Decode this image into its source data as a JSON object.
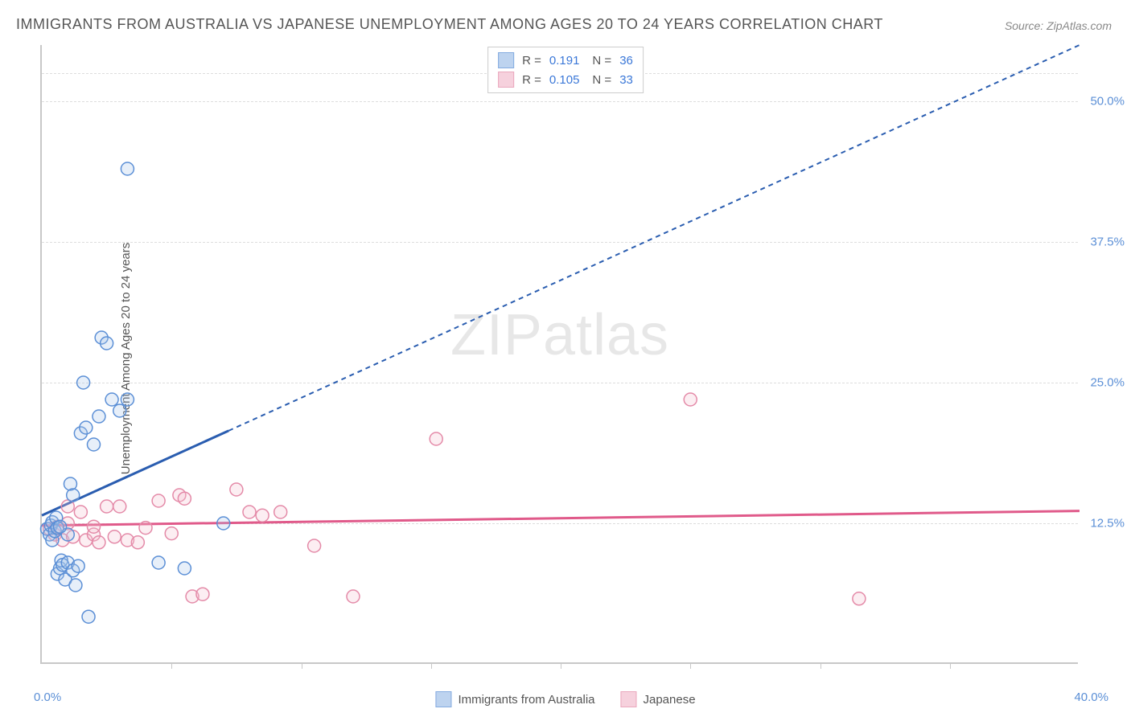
{
  "title": "IMMIGRANTS FROM AUSTRALIA VS JAPANESE UNEMPLOYMENT AMONG AGES 20 TO 24 YEARS CORRELATION CHART",
  "source": "Source: ZipAtlas.com",
  "ylabel": "Unemployment Among Ages 20 to 24 years",
  "watermark_a": "ZIP",
  "watermark_b": "atlas",
  "chart": {
    "type": "scatter",
    "xlim": [
      0,
      40
    ],
    "ylim": [
      0,
      55
    ],
    "x_tick_step": 5,
    "y_ticks": [
      12.5,
      25.0,
      37.5,
      50.0
    ],
    "y_tick_labels": [
      "12.5%",
      "25.0%",
      "37.5%",
      "50.0%"
    ],
    "x_min_label": "0.0%",
    "x_max_label": "40.0%",
    "grid_color": "#dddddd",
    "axis_color": "#c8c8c8",
    "background": "#ffffff",
    "marker_radius": 8,
    "marker_stroke_width": 1.5,
    "marker_fill_opacity": 0.28,
    "line_width_solid": 3,
    "line_width_dash": 2,
    "dash_pattern": "6,5",
    "series": [
      {
        "name": "Immigrants from Australia",
        "color_stroke": "#5b8fd6",
        "color_fill": "#a8c5ea",
        "trend_color": "#2a5db0",
        "R": "0.191",
        "N": "36",
        "trend": {
          "x1": 0,
          "y1": 13.2,
          "x2": 40,
          "y2": 55,
          "solid_until_x": 7.2
        },
        "points": [
          [
            0.2,
            12.0
          ],
          [
            0.3,
            11.5
          ],
          [
            0.35,
            12.3
          ],
          [
            0.4,
            11.0
          ],
          [
            0.4,
            12.6
          ],
          [
            0.5,
            11.8
          ],
          [
            0.55,
            13.0
          ],
          [
            0.6,
            12.1
          ],
          [
            0.6,
            8.0
          ],
          [
            0.7,
            8.5
          ],
          [
            0.75,
            9.2
          ],
          [
            0.8,
            8.8
          ],
          [
            0.9,
            7.5
          ],
          [
            1.0,
            9.0
          ],
          [
            1.0,
            11.5
          ],
          [
            1.1,
            16.0
          ],
          [
            1.2,
            15.0
          ],
          [
            1.2,
            8.3
          ],
          [
            1.3,
            7.0
          ],
          [
            1.4,
            8.7
          ],
          [
            1.5,
            20.5
          ],
          [
            1.6,
            25.0
          ],
          [
            1.7,
            21.0
          ],
          [
            1.8,
            4.2
          ],
          [
            2.0,
            19.5
          ],
          [
            2.2,
            22.0
          ],
          [
            2.3,
            29.0
          ],
          [
            2.5,
            28.5
          ],
          [
            2.7,
            23.5
          ],
          [
            3.0,
            22.5
          ],
          [
            3.3,
            44.0
          ],
          [
            3.3,
            23.5
          ],
          [
            4.5,
            9.0
          ],
          [
            5.5,
            8.5
          ],
          [
            7.0,
            12.5
          ],
          [
            0.7,
            12.2
          ]
        ]
      },
      {
        "name": "Japanese",
        "color_stroke": "#e48aa8",
        "color_fill": "#f4c2d2",
        "trend_color": "#e05a8a",
        "R": "0.105",
        "N": "33",
        "trend": {
          "x1": 0,
          "y1": 12.3,
          "x2": 40,
          "y2": 13.6,
          "solid_until_x": 40
        },
        "points": [
          [
            0.3,
            12.0
          ],
          [
            0.5,
            11.5
          ],
          [
            0.6,
            12.2
          ],
          [
            0.8,
            11.0
          ],
          [
            1.0,
            14.0
          ],
          [
            1.0,
            12.5
          ],
          [
            1.2,
            11.3
          ],
          [
            1.5,
            13.5
          ],
          [
            1.7,
            11.0
          ],
          [
            2.0,
            11.5
          ],
          [
            2.0,
            12.2
          ],
          [
            2.2,
            10.8
          ],
          [
            2.5,
            14.0
          ],
          [
            2.8,
            11.3
          ],
          [
            3.0,
            14.0
          ],
          [
            3.3,
            11.0
          ],
          [
            3.7,
            10.8
          ],
          [
            4.0,
            12.1
          ],
          [
            4.5,
            14.5
          ],
          [
            5.0,
            11.6
          ],
          [
            5.3,
            15.0
          ],
          [
            5.5,
            14.7
          ],
          [
            5.8,
            6.0
          ],
          [
            6.2,
            6.2
          ],
          [
            7.5,
            15.5
          ],
          [
            8.0,
            13.5
          ],
          [
            8.5,
            13.2
          ],
          [
            9.2,
            13.5
          ],
          [
            10.5,
            10.5
          ],
          [
            12.0,
            6.0
          ],
          [
            15.2,
            20.0
          ],
          [
            25.0,
            23.5
          ],
          [
            31.5,
            5.8
          ]
        ]
      }
    ]
  },
  "legend_top": {
    "r_label": "R =",
    "n_label": "N ="
  },
  "legend_bottom": [
    {
      "label": "Immigrants from Australia",
      "series_index": 0
    },
    {
      "label": "Japanese",
      "series_index": 1
    }
  ]
}
